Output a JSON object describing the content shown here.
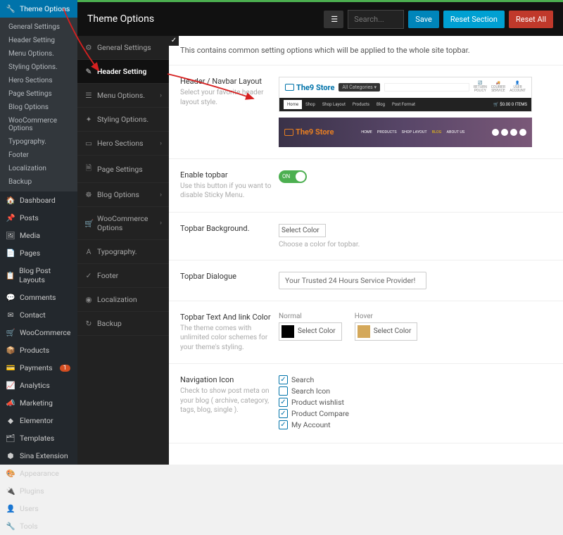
{
  "wp_sidebar": {
    "active": "Theme Options",
    "sub": [
      "General Settings",
      "Header Setting",
      "Menu Options.",
      "Styling Options.",
      "Hero Sections",
      "Page Settings",
      "Blog Options",
      "WooCommerce Options",
      "Typography.",
      "Footer",
      "Localization",
      "Backup"
    ],
    "groups": [
      {
        "icon": "🏠",
        "label": "Dashboard"
      },
      {
        "icon": "📌",
        "label": "Posts"
      },
      {
        "icon": "🖼",
        "label": "Media"
      },
      {
        "icon": "📄",
        "label": "Pages"
      },
      {
        "icon": "📋",
        "label": "Blog Post Layouts"
      },
      {
        "icon": "💬",
        "label": "Comments"
      },
      {
        "icon": "✉",
        "label": "Contact"
      },
      {
        "icon": "🛒",
        "label": "WooCommerce"
      },
      {
        "icon": "📦",
        "label": "Products"
      },
      {
        "icon": "💳",
        "label": "Payments",
        "badge": "1"
      },
      {
        "icon": "📈",
        "label": "Analytics"
      },
      {
        "icon": "📣",
        "label": "Marketing"
      },
      {
        "icon": "◆",
        "label": "Elementor"
      },
      {
        "icon": "🗂",
        "label": "Templates"
      },
      {
        "icon": "⬢",
        "label": "Sina Extension"
      },
      {
        "icon": "🎨",
        "label": "Appearance"
      },
      {
        "icon": "🔌",
        "label": "Plugins"
      },
      {
        "icon": "👤",
        "label": "Users"
      },
      {
        "icon": "🔧",
        "label": "Tools"
      }
    ]
  },
  "header": {
    "title": "Theme Options",
    "search_ph": "Search...",
    "save": "Save",
    "reset_section": "Reset Section",
    "reset_all": "Reset All"
  },
  "opt_nav": [
    {
      "icon": "⚙",
      "label": "General Settings"
    },
    {
      "icon": "✎",
      "label": "Header Setting",
      "active": true
    },
    {
      "icon": "☰",
      "label": "Menu Options.",
      "chev": true
    },
    {
      "icon": "✦",
      "label": "Styling Options."
    },
    {
      "icon": "▭",
      "label": "Hero Sections",
      "chev": true
    },
    {
      "icon": "🗎",
      "label": "Page Settings"
    },
    {
      "icon": "☸",
      "label": "Blog Options",
      "chev": true
    },
    {
      "icon": "🛒",
      "label": "WooCommerce Options",
      "chev": true
    },
    {
      "icon": "A",
      "label": "Typography."
    },
    {
      "icon": "✓",
      "label": "Footer"
    },
    {
      "icon": "◉",
      "label": "Localization"
    },
    {
      "icon": "↻",
      "label": "Backup"
    }
  ],
  "intro": "This contains common setting options which will be applied to the whole site topbar.",
  "sections": {
    "navbar": {
      "label": "Header / Navbar Layout",
      "sub": "Select your favorite header layout style."
    },
    "topbar": {
      "label": "Enable topbar",
      "sub": "Use this button if you want to disable Sticky Menu.",
      "toggle": "ON"
    },
    "bg": {
      "label": "Topbar Background.",
      "btn": "Select Color",
      "note": "Choose a color for topbar."
    },
    "dialogue": {
      "label": "Topbar Dialogue",
      "value": "Your Trusted 24 Hours Service Provider!"
    },
    "linkcolor": {
      "label": "Topbar Text And link Color",
      "sub": "The theme comes with unlimited color schemes for your theme's styling.",
      "normal": "Normal",
      "hover": "Hover",
      "btn": "Select Color",
      "c1": "#000000",
      "c2": "#d4a85a"
    },
    "navicon": {
      "label": "Navigation Icon",
      "sub": "Check to show post meta on your blog ( archive, category, tags, blog, single ).",
      "items": [
        {
          "label": "Search",
          "on": true
        },
        {
          "label": "Search Icon",
          "on": false
        },
        {
          "label": "Product wishlist",
          "on": true
        },
        {
          "label": "Product Compare",
          "on": true
        },
        {
          "label": "My Account",
          "on": true
        }
      ]
    }
  },
  "preview": {
    "brand": "The9 Store",
    "cats": "All Categories ▾",
    "menu": [
      "Home",
      "Shop",
      "Shop Layout",
      "Products",
      "Blog",
      "Post Format"
    ],
    "cart": "🛒 $0.00 0 ITEMS",
    "top_icons": [
      [
        "🔄",
        "RETURN",
        "POLICY"
      ],
      [
        "🚚",
        "COURIER",
        "SERVICE"
      ],
      [
        "👤",
        "USER",
        "ACCOUNT"
      ]
    ],
    "menu2": [
      "HOME",
      "PRODUCTS",
      "SHOP LAYOUT",
      "BLOG",
      "ABOUT US"
    ]
  },
  "colors": {
    "accent": "#0073aa",
    "green": "#4caf50",
    "red": "#c0392b",
    "arrow": "#d62020"
  }
}
